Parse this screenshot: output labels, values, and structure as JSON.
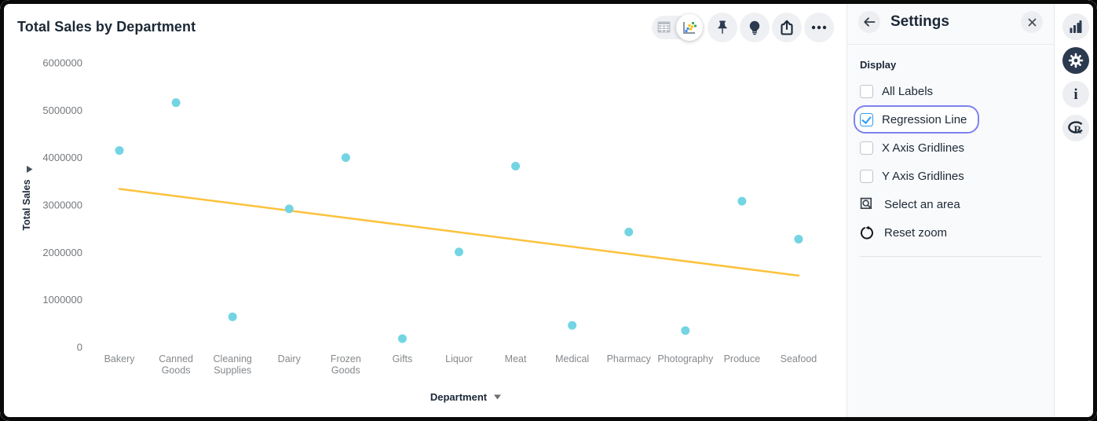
{
  "chart_data": {
    "type": "scatter",
    "title": "Total Sales by Department",
    "xlabel": "Department",
    "ylabel": "Total Sales",
    "categories": [
      "Bakery",
      "Canned Goods",
      "Cleaning Supplies",
      "Dairy",
      "Frozen Goods",
      "Gifts",
      "Liquor",
      "Meat",
      "Medical",
      "Pharmacy",
      "Photography",
      "Produce",
      "Seafood"
    ],
    "values": [
      4150000,
      5160000,
      640000,
      2920000,
      4000000,
      180000,
      2010000,
      3820000,
      460000,
      2430000,
      350000,
      3080000,
      2280000
    ],
    "ylim": [
      0,
      6000000
    ],
    "yticks": [
      0,
      1000000,
      2000000,
      3000000,
      4000000,
      5000000,
      6000000
    ],
    "grid": false,
    "legend": false,
    "point_color": "#73d4e3",
    "regression": {
      "y_start": 3340000,
      "y_end": 1510000,
      "color": "#fcc23c"
    }
  },
  "toolbar": {
    "view_toggle": {
      "left_icon": "table-icon",
      "right_icon": "scatter-chart-icon",
      "selected": "chart"
    },
    "buttons": [
      {
        "icon": "pin-icon"
      },
      {
        "icon": "lightbulb-icon"
      },
      {
        "icon": "share-icon"
      },
      {
        "icon": "ellipsis-icon"
      }
    ]
  },
  "settings_panel": {
    "title": "Settings",
    "back_icon": "arrow-left-icon",
    "close_icon": "close-icon",
    "section_label": "Display",
    "checkboxes": [
      {
        "label": "All Labels",
        "checked": false,
        "focused": false
      },
      {
        "label": "Regression Line",
        "checked": true,
        "focused": true
      },
      {
        "label": "X Axis Gridlines",
        "checked": false,
        "focused": false
      },
      {
        "label": "Y Axis Gridlines",
        "checked": false,
        "focused": false
      }
    ],
    "actions": [
      {
        "label": "Select an area",
        "icon": "select-area-icon"
      },
      {
        "label": "Reset zoom",
        "icon": "reset-zoom-icon"
      }
    ]
  },
  "right_rail": {
    "items": [
      {
        "icon": "bar-chart-icon",
        "active": false
      },
      {
        "icon": "gear-icon",
        "active": true
      },
      {
        "icon": "info-icon",
        "active": false,
        "glyph": "i"
      },
      {
        "icon": "r-logo-icon",
        "active": false,
        "glyph": "R"
      }
    ]
  },
  "colors": {
    "point": "#73d4e3",
    "regression_line": "#fcc23c",
    "checkbox_checked": "#2e9cf4",
    "focus_ring": "#7d82ee",
    "icon_dark": "#2c3a4f",
    "text_dark": "#1b2836",
    "tick_gray": "#75797e"
  }
}
